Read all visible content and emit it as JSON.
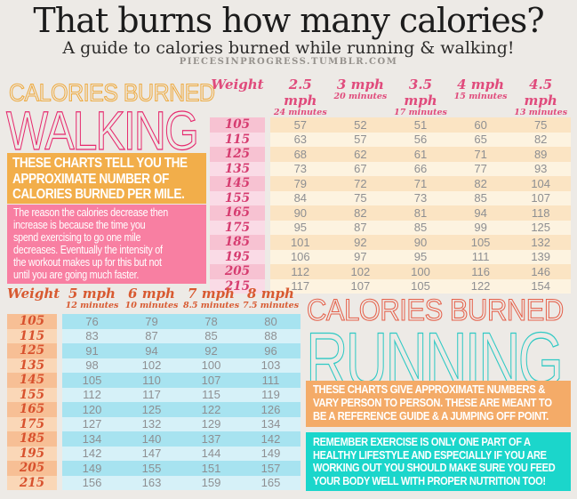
{
  "page": {
    "title": "That burns how many calories?",
    "subtitle": "A guide to calories burned while running & walking!",
    "site": "PIECESINPROGRESS.TUMBLR.COM"
  },
  "colors": {
    "walking_eyebrow": "#eeab41",
    "walking_heading": "#e62a6e",
    "running_eyebrow": "#e5604a",
    "running_heading": "#30c9c4",
    "walking_note1_bg": "#f2ae4a",
    "walking_note2_bg": "#f87fa2",
    "running_note1_bg": "#f4ab68",
    "running_note2_bg": "#1bd6cb"
  },
  "walking": {
    "heading_top": "CALORIES BURNED",
    "heading_main": "WALKING",
    "note1": "THESE CHARTS TELL YOU THE\nAPPROXIMATE NUMBER OF\nCALORIES BURNED PER MILE.",
    "note2": "The reason the calories decrease then\nincrease is because the time you\nspend exercising to go one mile\ndecreases. Eventually the intensity of\nthe workout makes up for this but not\nuntil you are going much faster."
  },
  "running": {
    "heading_top": "CALORIES BURNED",
    "heading_main": "RUNNING",
    "note1": "THESE CHARTS GIVE APPROXIMATE NUMBERS &\nVARY PERSON TO PERSON. THESE ARE MEANT TO\nBE A REFERENCE GUIDE & A JUMPING OFF POINT.",
    "note2": "REMEMBER EXERCISE IS ONLY ONE PART OF A\nHEALTHY LIFESTYLE AND ESPECIALLY IF YOU ARE\nWORKING OUT YOU SHOULD MAKE SURE YOU FEED\nYOUR BODY WELL WITH PROPER NUTRITION TOO!"
  },
  "chart_data": [
    {
      "type": "table",
      "title": "Calories burned per mile while walking",
      "weight_label": "Weight",
      "columns": [
        {
          "speed": "2.5 mph",
          "pace": "24 minutes"
        },
        {
          "speed": "3 mph",
          "pace": "20 minutes"
        },
        {
          "speed": "3.5 mph",
          "pace": "17 minutes"
        },
        {
          "speed": "4 mph",
          "pace": "15 minutes"
        },
        {
          "speed": "4.5 mph",
          "pace": "13 minutes"
        }
      ],
      "weights": [
        105,
        115,
        125,
        135,
        145,
        155,
        165,
        175,
        185,
        195,
        205,
        215
      ],
      "rows": [
        [
          57,
          52,
          51,
          60,
          75
        ],
        [
          63,
          57,
          56,
          65,
          82
        ],
        [
          68,
          62,
          61,
          71,
          89
        ],
        [
          73,
          67,
          66,
          77,
          93
        ],
        [
          79,
          72,
          71,
          82,
          104
        ],
        [
          84,
          75,
          73,
          85,
          107
        ],
        [
          90,
          82,
          81,
          94,
          118
        ],
        [
          95,
          87,
          85,
          99,
          125
        ],
        [
          101,
          92,
          90,
          105,
          132
        ],
        [
          106,
          97,
          95,
          111,
          139
        ],
        [
          112,
          102,
          100,
          116,
          146
        ],
        [
          117,
          107,
          105,
          122,
          154
        ]
      ]
    },
    {
      "type": "table",
      "title": "Calories burned per mile while running",
      "weight_label": "Weight",
      "columns": [
        {
          "speed": "5 mph",
          "pace": "12 minutes"
        },
        {
          "speed": "6 mph",
          "pace": "10 minutes"
        },
        {
          "speed": "7 mph",
          "pace": "8.5 minutes"
        },
        {
          "speed": "8 mph",
          "pace": "7.5 minutes"
        }
      ],
      "weights": [
        105,
        115,
        125,
        135,
        145,
        155,
        165,
        175,
        185,
        195,
        205,
        215
      ],
      "rows": [
        [
          76,
          79,
          78,
          80
        ],
        [
          83,
          87,
          85,
          88
        ],
        [
          91,
          94,
          92,
          96
        ],
        [
          98,
          102,
          100,
          103
        ],
        [
          105,
          110,
          107,
          111
        ],
        [
          112,
          117,
          115,
          119
        ],
        [
          120,
          125,
          122,
          126
        ],
        [
          127,
          132,
          129,
          134
        ],
        [
          134,
          140,
          137,
          142
        ],
        [
          142,
          147,
          144,
          149
        ],
        [
          149,
          155,
          151,
          157
        ],
        [
          156,
          163,
          159,
          165
        ]
      ]
    }
  ]
}
